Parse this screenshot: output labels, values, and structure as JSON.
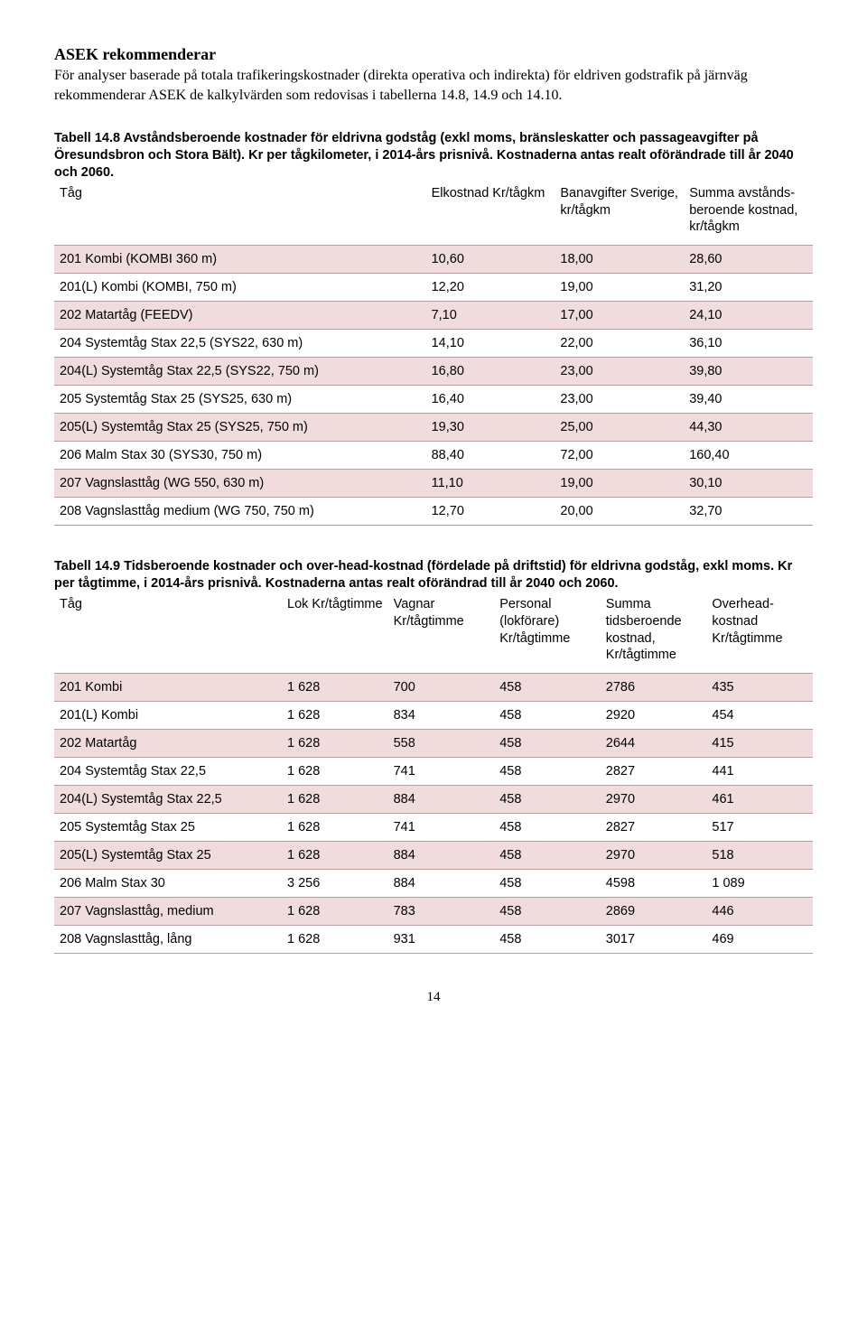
{
  "heading": "ASEK rekommenderar",
  "intro": "För analyser baserade på totala trafikeringskostnader (direkta operativa och indirekta) för eldriven godstrafik på järnväg rekommenderar ASEK de kalkylvärden som redovisas i tabellerna 14.8, 14.9 och 14.10.",
  "table1": {
    "caption": "Tabell 14.8 Avståndsberoende kostnader för eldrivna godståg (exkl moms, bränsleskatter och passageavgifter på Öresundsbron och Stora Bält). Kr per tågkilometer, i 2014-års prisnivå. Kostnaderna antas realt oförändrade till år 2040 och 2060.",
    "columns": [
      "Tåg",
      "Elkostnad Kr/tågkm",
      "Banavgifter Sverige, kr/tågkm",
      "Summa avstånds-beroende kostnad, kr/tågkm"
    ],
    "rows": [
      [
        "201 Kombi (KOMBI 360 m)",
        "10,60",
        "18,00",
        "28,60"
      ],
      [
        "201(L) Kombi (KOMBI, 750 m)",
        "12,20",
        "19,00",
        "31,20"
      ],
      [
        "202 Matartåg (FEEDV)",
        "7,10",
        "17,00",
        "24,10"
      ],
      [
        "204 Systemtåg Stax 22,5 (SYS22, 630 m)",
        "14,10",
        "22,00",
        "36,10"
      ],
      [
        "204(L) Systemtåg Stax 22,5 (SYS22, 750 m)",
        "16,80",
        "23,00",
        "39,80"
      ],
      [
        "205 Systemtåg Stax 25 (SYS25, 630 m)",
        "16,40",
        "23,00",
        "39,40"
      ],
      [
        "205(L) Systemtåg Stax 25 (SYS25, 750 m)",
        "19,30",
        "25,00",
        "44,30"
      ],
      [
        "206 Malm Stax 30 (SYS30, 750 m)",
        "88,40",
        "72,00",
        "160,40"
      ],
      [
        "207 Vagnslasttåg (WG 550, 630 m)",
        "11,10",
        "19,00",
        "30,10"
      ],
      [
        "208 Vagnslasttåg medium (WG 750, 750 m)",
        "12,70",
        "20,00",
        "32,70"
      ]
    ],
    "stripe_rows": [
      0,
      2,
      4,
      6,
      8
    ],
    "stripe_color": "#f0dcdd",
    "border_color": "#b89c9c"
  },
  "table2": {
    "caption": "Tabell 14.9 Tidsberoende kostnader och over-head-kostnad (fördelade på driftstid) för eldrivna godståg, exkl moms. Kr per tågtimme, i 2014-års prisnivå. Kostnaderna antas realt oförändrad till år 2040 och 2060.",
    "columns": [
      "Tåg",
      "Lok Kr/tågtimme",
      "Vagnar Kr/tågtimme",
      "Personal (lokförare) Kr/tågtimme",
      "Summa tidsberoende kostnad, Kr/tågtimme",
      "Overhead-kostnad Kr/tågtimme"
    ],
    "rows": [
      [
        "201 Kombi",
        "1 628",
        "700",
        "458",
        "2786",
        "435"
      ],
      [
        "201(L) Kombi",
        "1 628",
        "834",
        "458",
        "2920",
        "454"
      ],
      [
        "202 Matartåg",
        "1 628",
        "558",
        "458",
        "2644",
        "415"
      ],
      [
        "204 Systemtåg Stax 22,5",
        "1 628",
        "741",
        "458",
        "2827",
        "441"
      ],
      [
        "204(L) Systemtåg Stax 22,5",
        "1 628",
        "884",
        "458",
        "2970",
        "461"
      ],
      [
        "205 Systemtåg Stax 25",
        "1 628",
        "741",
        "458",
        "2827",
        "517"
      ],
      [
        "205(L) Systemtåg Stax 25",
        "1 628",
        "884",
        "458",
        "2970",
        "518"
      ],
      [
        "206 Malm Stax 30",
        "3 256",
        "884",
        "458",
        "4598",
        "1 089"
      ],
      [
        "207 Vagnslasttåg, medium",
        "1 628",
        "783",
        "458",
        "2869",
        "446"
      ],
      [
        "208 Vagnslasttåg, lång",
        "1 628",
        "931",
        "458",
        "3017",
        "469"
      ]
    ],
    "stripe_rows": [
      0,
      2,
      4,
      6,
      8
    ],
    "stripe_color": "#f0dcdd",
    "border_color": "#b89c9c"
  },
  "page_number": "14",
  "style": {
    "body_font": "Times New Roman",
    "table_font": "Arial",
    "body_fontsize": 16,
    "caption_fontsize": 14.5,
    "table_fontsize": 14.5,
    "background": "#ffffff",
    "text_color": "#000000"
  }
}
